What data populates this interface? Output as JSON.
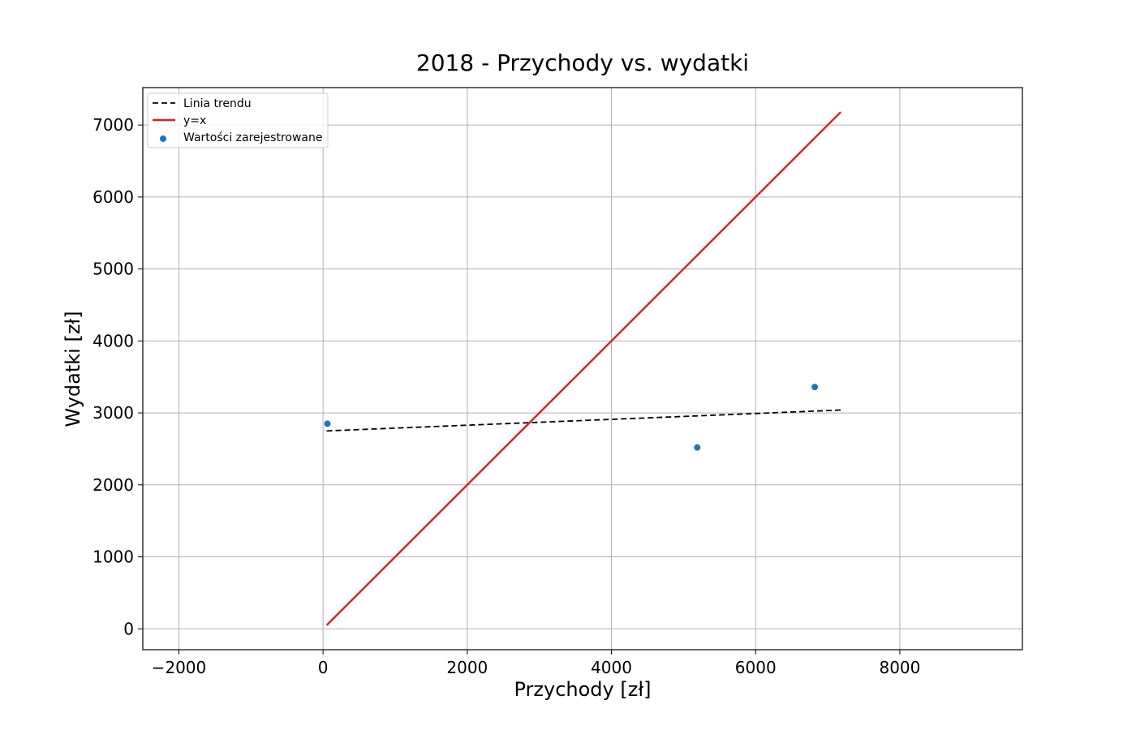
{
  "chart_data": {
    "type": "scatter",
    "title": "2018 - Przychody vs. wydatki",
    "xlabel": "Przychody [zł]",
    "ylabel": "Wydatki [zł]",
    "xlim": [
      -2500,
      9700
    ],
    "ylim": [
      -290,
      7520
    ],
    "xticks": [
      -2000,
      0,
      2000,
      4000,
      6000,
      8000
    ],
    "yticks": [
      0,
      1000,
      2000,
      3000,
      4000,
      5000,
      6000,
      7000
    ],
    "xtick_labels": [
      "−2000",
      "0",
      "2000",
      "4000",
      "6000",
      "8000"
    ],
    "ytick_labels": [
      "0",
      "1000",
      "2000",
      "3000",
      "4000",
      "5000",
      "6000",
      "7000"
    ],
    "grid": true,
    "legend_position": "top-left",
    "series": [
      {
        "name": "Linia trendu",
        "kind": "line",
        "style": "dashed",
        "color": "#000000",
        "x": [
          50,
          7180
        ],
        "y": [
          2750,
          3040
        ]
      },
      {
        "name": "y=x",
        "kind": "line",
        "style": "solid",
        "color": "#e41a1c",
        "x": [
          50,
          7180
        ],
        "y": [
          50,
          7180
        ]
      },
      {
        "name": "Wartości zarejestrowane",
        "kind": "scatter",
        "color": "#1f77b4",
        "x": [
          60,
          5190,
          6820
        ],
        "y": [
          2850,
          2520,
          3360
        ]
      }
    ]
  }
}
